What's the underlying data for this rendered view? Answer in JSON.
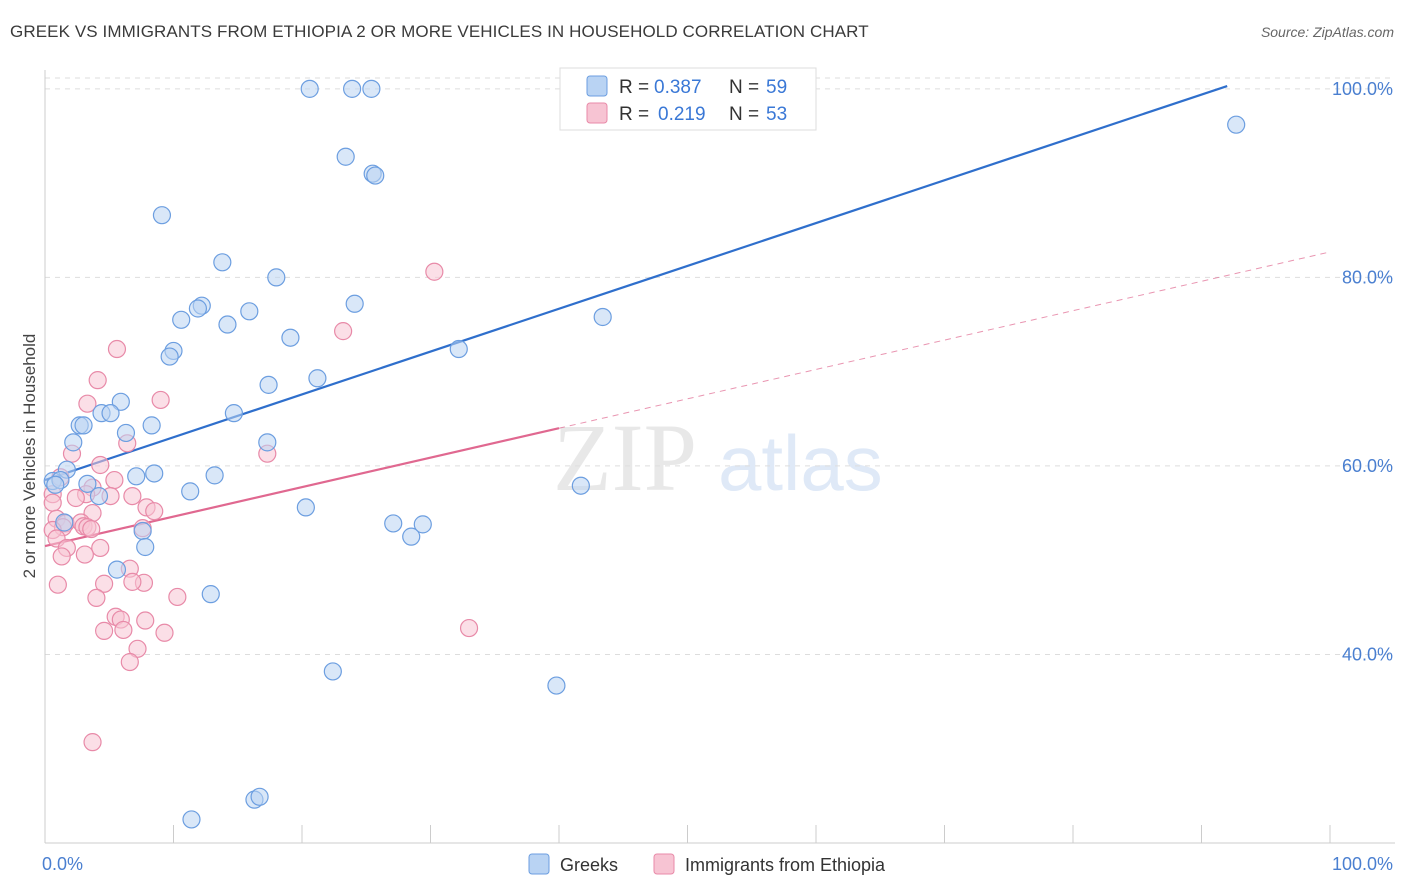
{
  "title": "GREEK VS IMMIGRANTS FROM ETHIOPIA 2 OR MORE VEHICLES IN HOUSEHOLD CORRELATION CHART",
  "source": "Source: ZipAtlas.com",
  "watermark": {
    "zip": "ZIP",
    "atlas": "atlas"
  },
  "colors": {
    "greeks_fill": "#b9d3f3",
    "greeks_stroke": "#6c9ee0",
    "greeks_line": "#2f6fcc",
    "ethiopia_fill": "#f7c4d3",
    "ethiopia_stroke": "#e88aa8",
    "ethiopia_line": "#e06890",
    "tick": "#4a7fd0",
    "grid": "#dddddd"
  },
  "legend": {
    "r_label": "R =",
    "n_label": "N =",
    "greeks": {
      "r": "0.387",
      "n": "59"
    },
    "ethiopia": {
      "r": "0.219",
      "n": "53"
    }
  },
  "chart_data": {
    "type": "scatter",
    "title": "GREEK VS IMMIGRANTS FROM ETHIOPIA 2 OR MORE VEHICLES IN HOUSEHOLD CORRELATION CHART",
    "xlabel": "",
    "ylabel": "2 or more Vehicles in Household",
    "xlim": [
      0,
      100
    ],
    "ylim": [
      20,
      102
    ],
    "x_tick_labels": [
      "0.0%",
      "100.0%"
    ],
    "y_ticks": [
      40,
      60,
      80,
      100
    ],
    "y_tick_labels": [
      "40.0%",
      "60.0%",
      "80.0%",
      "100.0%"
    ],
    "grid": true,
    "legend_position": "top-center",
    "series": [
      {
        "name": "Greeks",
        "points": [
          [
            20.6,
            100
          ],
          [
            23.9,
            100
          ],
          [
            25.4,
            100
          ],
          [
            56.4,
            100
          ],
          [
            92.7,
            96.2
          ],
          [
            23.4,
            92.8
          ],
          [
            25.5,
            91.0
          ],
          [
            25.7,
            90.8
          ],
          [
            9.1,
            86.6
          ],
          [
            13.8,
            81.6
          ],
          [
            18.0,
            80.0
          ],
          [
            12.2,
            77.0
          ],
          [
            11.9,
            76.7
          ],
          [
            15.9,
            76.4
          ],
          [
            10.6,
            75.5
          ],
          [
            24.1,
            77.2
          ],
          [
            14.2,
            75.0
          ],
          [
            19.1,
            73.6
          ],
          [
            43.4,
            75.8
          ],
          [
            32.2,
            72.4
          ],
          [
            10.0,
            72.2
          ],
          [
            9.7,
            71.6
          ],
          [
            21.2,
            69.3
          ],
          [
            17.4,
            68.6
          ],
          [
            5.9,
            66.8
          ],
          [
            4.4,
            65.6
          ],
          [
            5.1,
            65.6
          ],
          [
            14.7,
            65.6
          ],
          [
            2.7,
            64.3
          ],
          [
            3.0,
            64.3
          ],
          [
            8.3,
            64.3
          ],
          [
            17.3,
            62.5
          ],
          [
            2.2,
            62.5
          ],
          [
            6.3,
            63.5
          ],
          [
            1.7,
            59.6
          ],
          [
            8.5,
            59.2
          ],
          [
            13.2,
            59.0
          ],
          [
            7.1,
            58.9
          ],
          [
            0.6,
            58.4
          ],
          [
            1.2,
            58.5
          ],
          [
            3.3,
            58.1
          ],
          [
            0.8,
            58.0
          ],
          [
            11.3,
            57.3
          ],
          [
            41.7,
            57.9
          ],
          [
            4.2,
            56.8
          ],
          [
            20.3,
            55.6
          ],
          [
            7.6,
            53.1
          ],
          [
            1.5,
            54.0
          ],
          [
            27.1,
            53.9
          ],
          [
            28.5,
            52.5
          ],
          [
            29.4,
            53.8
          ],
          [
            7.8,
            51.4
          ],
          [
            5.6,
            49.0
          ],
          [
            12.9,
            46.4
          ],
          [
            22.4,
            38.2
          ],
          [
            39.8,
            36.7
          ],
          [
            16.3,
            24.6
          ],
          [
            16.7,
            24.9
          ],
          [
            11.4,
            22.5
          ]
        ]
      },
      {
        "name": "Immigrants from Ethiopia",
        "points": [
          [
            30.3,
            80.6
          ],
          [
            23.2,
            74.3
          ],
          [
            5.6,
            72.4
          ],
          [
            4.1,
            69.1
          ],
          [
            9.0,
            67.0
          ],
          [
            3.3,
            66.6
          ],
          [
            6.4,
            62.4
          ],
          [
            17.3,
            61.3
          ],
          [
            2.1,
            61.3
          ],
          [
            4.3,
            60.1
          ],
          [
            1.2,
            58.8
          ],
          [
            5.4,
            58.5
          ],
          [
            3.7,
            57.7
          ],
          [
            0.6,
            57.0
          ],
          [
            3.2,
            57.0
          ],
          [
            6.8,
            56.8
          ],
          [
            5.1,
            56.8
          ],
          [
            2.4,
            56.6
          ],
          [
            0.6,
            56.1
          ],
          [
            7.9,
            55.6
          ],
          [
            3.7,
            55.0
          ],
          [
            8.5,
            55.2
          ],
          [
            0.9,
            54.4
          ],
          [
            1.6,
            53.9
          ],
          [
            2.8,
            54.0
          ],
          [
            3.0,
            53.6
          ],
          [
            3.3,
            53.5
          ],
          [
            1.4,
            53.5
          ],
          [
            7.6,
            53.4
          ],
          [
            0.6,
            53.2
          ],
          [
            3.6,
            53.3
          ],
          [
            0.9,
            52.3
          ],
          [
            4.3,
            51.3
          ],
          [
            1.7,
            51.3
          ],
          [
            3.1,
            50.6
          ],
          [
            1.3,
            50.4
          ],
          [
            6.6,
            49.1
          ],
          [
            1.0,
            47.4
          ],
          [
            4.6,
            47.5
          ],
          [
            7.7,
            47.6
          ],
          [
            6.8,
            47.7
          ],
          [
            10.3,
            46.1
          ],
          [
            4.0,
            46.0
          ],
          [
            5.5,
            44.0
          ],
          [
            5.9,
            43.7
          ],
          [
            7.8,
            43.6
          ],
          [
            4.6,
            42.5
          ],
          [
            6.1,
            42.6
          ],
          [
            9.3,
            42.3
          ],
          [
            33.0,
            42.8
          ],
          [
            7.2,
            40.6
          ],
          [
            6.6,
            39.2
          ],
          [
            3.7,
            30.7
          ]
        ]
      }
    ],
    "trend_lines": [
      {
        "name": "Greeks",
        "x": [
          0,
          92
        ],
        "y": [
          58.5,
          100.3
        ],
        "style": "solid"
      },
      {
        "name": "Immigrants from Ethiopia",
        "x": [
          0,
          40
        ],
        "y": [
          51.5,
          64.0
        ],
        "style": "solid"
      },
      {
        "name": "Immigrants from Ethiopia",
        "x": [
          40,
          100
        ],
        "y": [
          64.0,
          82.7
        ],
        "style": "dashed"
      }
    ]
  }
}
